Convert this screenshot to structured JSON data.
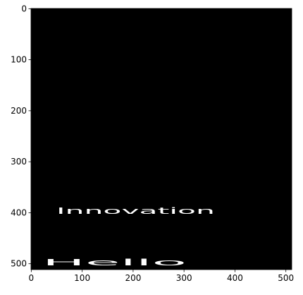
{
  "chart_data": {
    "type": "image",
    "xlim": [
      -0.5,
      511.5
    ],
    "ylim": [
      511.5,
      -0.5
    ],
    "xticks": [
      0,
      100,
      200,
      300,
      400,
      500
    ],
    "yticks": [
      0,
      100,
      200,
      300,
      400,
      500
    ],
    "background": "#000000",
    "annotations": [
      "Innovation",
      "Hello"
    ]
  }
}
